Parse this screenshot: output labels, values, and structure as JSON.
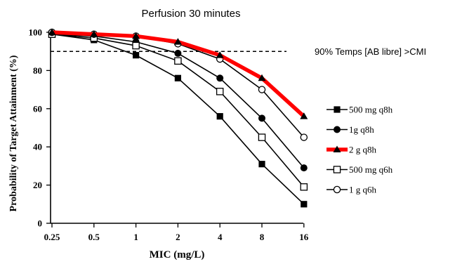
{
  "chart_data": {
    "type": "line",
    "title": "Perfusion 30 minutes",
    "xlabel": "MIC (mg/L)",
    "ylabel": "Probability of Target Attainment (%)",
    "categories": [
      "0.25",
      "0.5",
      "1",
      "2",
      "4",
      "8",
      "16"
    ],
    "ylim": [
      0,
      100
    ],
    "yticks": [
      "0",
      "20",
      "40",
      "60",
      "80",
      "100"
    ],
    "reference_line": {
      "value": 90,
      "label": "90% Temps [AB libre] >CMI",
      "style": "dashed"
    },
    "legend_position": "right",
    "grid": false,
    "series": [
      {
        "name": "500 mg q8h",
        "marker": "square-filled",
        "color": "#000000",
        "values": [
          99,
          96,
          88,
          76,
          56,
          31,
          10
        ]
      },
      {
        "name": "1g q8h",
        "marker": "circle-filled",
        "color": "#000000",
        "values": [
          99,
          98,
          95,
          89,
          76,
          55,
          29
        ]
      },
      {
        "name": "2 g q8h",
        "marker": "triangle-filled",
        "color": "#ff0000",
        "highlight": true,
        "values": [
          100,
          99,
          98,
          95,
          88,
          76,
          56
        ]
      },
      {
        "name": "500 mg q6h",
        "marker": "square-open",
        "color": "#000000",
        "values": [
          99,
          97,
          93,
          85,
          69,
          45,
          19
        ]
      },
      {
        "name": "1 g q6h",
        "marker": "circle-open",
        "color": "#000000",
        "values": [
          100,
          99,
          98,
          94,
          86,
          70,
          45
        ]
      }
    ]
  }
}
